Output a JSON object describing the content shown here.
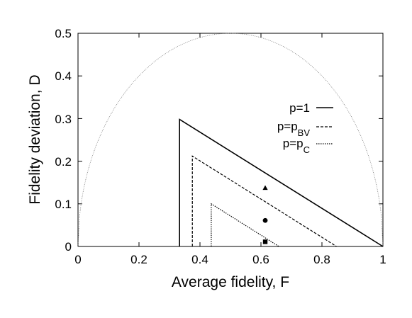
{
  "chart_data": {
    "type": "line",
    "xlabel": "Average fidelity, F",
    "ylabel": "Fidelity deviation, D",
    "xlim": [
      0,
      1
    ],
    "ylim": [
      0,
      0.5
    ],
    "xticks": [
      "0",
      "0.2",
      "0.4",
      "0.6",
      "0.8",
      "1"
    ],
    "yticks": [
      "0",
      "0.1",
      "0.2",
      "0.3",
      "0.4",
      "0.5"
    ],
    "grid": false,
    "legend_position": "right",
    "series": [
      {
        "name": "p=1",
        "style": "solid",
        "points": [
          [
            0.333,
            0
          ],
          [
            0.333,
            0.298
          ],
          [
            1.0,
            0
          ]
        ]
      },
      {
        "name": "p=p_BV",
        "legend_main": "p=p",
        "legend_sub": "BV",
        "style": "dashed",
        "points": [
          [
            0.375,
            0
          ],
          [
            0.375,
            0.212
          ],
          [
            0.848,
            0
          ]
        ]
      },
      {
        "name": "p=p_C",
        "legend_main": "p=p",
        "legend_sub": "C",
        "style": "dotted",
        "points": [
          [
            0.437,
            0
          ],
          [
            0.437,
            0.1
          ],
          [
            0.659,
            0
          ]
        ]
      },
      {
        "name": "",
        "style": "boundary",
        "function": "semicircle: D = sqrt(F(1-F))"
      }
    ],
    "markers": [
      {
        "shape": "triangle",
        "x": 0.614,
        "y": 0.137
      },
      {
        "shape": "circle",
        "x": 0.614,
        "y": 0.061
      },
      {
        "shape": "square",
        "x": 0.614,
        "y": 0.011
      }
    ]
  }
}
